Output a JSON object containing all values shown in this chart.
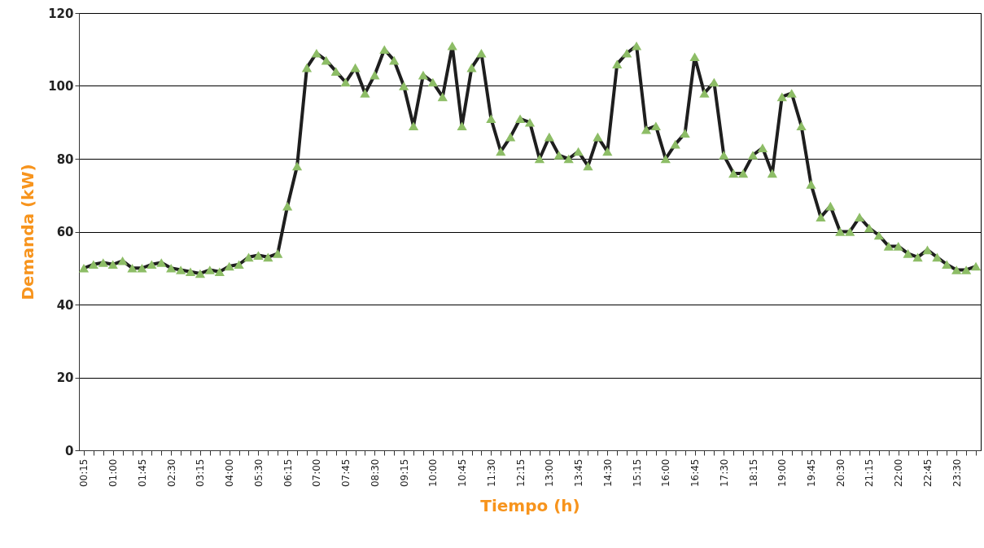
{
  "chart_data": {
    "type": "line",
    "xlabel": "Tiempo (h)",
    "ylabel": "Demanda (kW)",
    "categories": [
      "00:15",
      null,
      null,
      "01:00",
      null,
      null,
      "01:45",
      null,
      null,
      "02:30",
      null,
      null,
      "03:15",
      null,
      null,
      "04:00",
      null,
      null,
      "05:30",
      null,
      null,
      "06:15",
      null,
      null,
      "07:00",
      null,
      null,
      "07:45",
      null,
      null,
      "08:30",
      null,
      null,
      "09:15",
      null,
      null,
      "10:00",
      null,
      null,
      "10:45",
      null,
      null,
      "11:30",
      null,
      null,
      "12:15",
      null,
      null,
      "13:00",
      null,
      null,
      "13:45",
      null,
      null,
      "14:30",
      null,
      null,
      "15:15",
      null,
      null,
      "16:00",
      null,
      null,
      "16:45",
      null,
      null,
      "17:30",
      null,
      null,
      "18:15",
      null,
      null,
      "19:00",
      null,
      null,
      "19:45",
      null,
      null,
      "20:30",
      null,
      null,
      "21:15",
      null,
      null,
      "22:00",
      null,
      null,
      "22:45",
      null,
      null,
      "23:30",
      null,
      null
    ],
    "series": [
      {
        "color": "#1e1e1e",
        "values": [
          50,
          51,
          51.5,
          51,
          52,
          50,
          50,
          51,
          51.5,
          50,
          49.5,
          49,
          48.5,
          49.5,
          49,
          50.5,
          51,
          53,
          53.5,
          53,
          54,
          67,
          78,
          105,
          109,
          107,
          104,
          101,
          105,
          98,
          103,
          110,
          107,
          100,
          89,
          103,
          101,
          97,
          111,
          89,
          105,
          109,
          91,
          82,
          86,
          91,
          90,
          80,
          86,
          81,
          80,
          82,
          78,
          86,
          82,
          106,
          109,
          111,
          88,
          89,
          80,
          84,
          87,
          108,
          98,
          101,
          81,
          76,
          76,
          81,
          83,
          76,
          97,
          98,
          89,
          73,
          64,
          67,
          60,
          60,
          64,
          61,
          59,
          56,
          56,
          54,
          53,
          55,
          53,
          51,
          49.5,
          49.5,
          50.5
        ]
      }
    ],
    "ylim": [
      0,
      120
    ],
    "yticks": [
      0,
      20,
      40,
      60,
      80,
      100,
      120
    ],
    "grid": "y",
    "marker": "triangle",
    "line_style": "solid"
  }
}
